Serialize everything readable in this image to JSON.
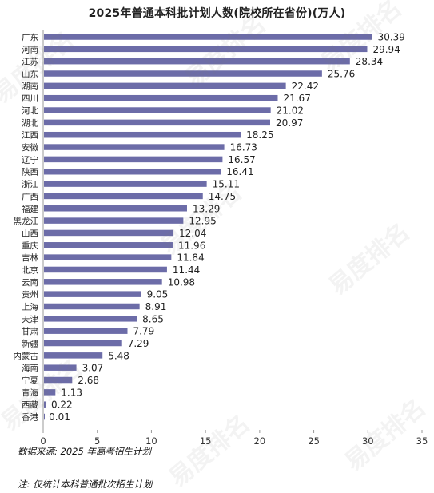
{
  "watermark": "易度排名",
  "source_note": "数据来源: 2025 年高考招生计划",
  "footnote": "注: 仅统计本科普通批次招生计划",
  "chart_data": {
    "type": "bar",
    "orientation": "horizontal",
    "title": "2025年普通本科批计划人数(院校所在省份)(万人)",
    "xlabel": "",
    "ylabel": "",
    "xlim": [
      0,
      35
    ],
    "xticks": [
      0,
      5,
      10,
      15,
      20,
      25,
      30,
      35
    ],
    "grid": false,
    "bar_color": "#6c6ca8",
    "categories": [
      "广东",
      "河南",
      "江苏",
      "山东",
      "湖南",
      "四川",
      "河北",
      "湖北",
      "江西",
      "安徽",
      "辽宁",
      "陕西",
      "浙江",
      "广西",
      "福建",
      "黑龙江",
      "山西",
      "重庆",
      "吉林",
      "北京",
      "云南",
      "贵州",
      "上海",
      "天津",
      "甘肃",
      "新疆",
      "内蒙古",
      "海南",
      "宁夏",
      "青海",
      "西藏",
      "香港"
    ],
    "values": [
      30.39,
      29.94,
      28.34,
      25.76,
      22.42,
      21.67,
      21.02,
      20.97,
      18.25,
      16.73,
      16.57,
      16.41,
      15.11,
      14.75,
      13.29,
      12.95,
      12.04,
      11.96,
      11.84,
      11.44,
      10.98,
      9.05,
      8.91,
      8.65,
      7.79,
      7.29,
      5.48,
      3.07,
      2.68,
      1.13,
      0.22,
      0.01
    ],
    "value_labels": [
      "30.39",
      "29.94",
      "28.34",
      "25.76",
      "22.42",
      "21.67",
      "21.02",
      "20.97",
      "18.25",
      "16.73",
      "16.57",
      "16.41",
      "15.11",
      "14.75",
      "13.29",
      "12.95",
      "12.04",
      "11.96",
      "11.84",
      "11.44",
      "10.98",
      "9.05",
      "8.91",
      "8.65",
      "7.79",
      "7.29",
      "5.48",
      "3.07",
      "2.68",
      "1.13",
      "0.22",
      "0.01"
    ]
  }
}
